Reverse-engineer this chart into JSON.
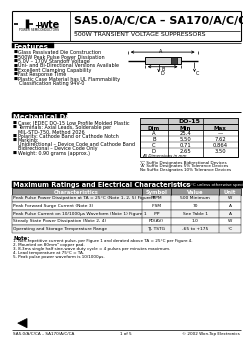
{
  "title_main": "SA5.0/A/C/CA – SA170/A/C/CA",
  "title_sub": "500W TRANSIENT VOLTAGE SUPPRESSORS",
  "features_title": "Features",
  "features": [
    "Glass Passivated Die Construction",
    "500W Peak Pulse Power Dissipation",
    "5.0V – 170V Standoff Voltage",
    "Uni- and Bi-Directional Versions Available",
    "Excellent Clamping Capability",
    "Fast Response Time",
    "Plastic Case Material has UL Flammability",
    "   Classification Rating 94V-0"
  ],
  "mech_title": "Mechanical Data",
  "mech_items": [
    "Case: JEDEC DO-15 Low Profile Molded Plastic",
    "Terminals: Axial Leads, Solderable per",
    "   MIL-STD-750, Method 2026",
    "Polarity: Cathode Band or Cathode Notch",
    "Marking:",
    "   Unidirectional – Device Code and Cathode Band",
    "   Bidirectional – Device Code Only",
    "Weight: 0.90 grams (approx.)"
  ],
  "mech_bullets": [
    true,
    true,
    false,
    true,
    true,
    false,
    false,
    true
  ],
  "do15_title": "DO-15",
  "do15_headers": [
    "Dim",
    "Min",
    "Max"
  ],
  "do15_rows": [
    [
      "A",
      "25.4",
      "—"
    ],
    [
      "B",
      "5.50",
      "7.62"
    ],
    [
      "C",
      "0.71",
      "0.864"
    ],
    [
      "D",
      "2.65",
      "3.50"
    ]
  ],
  "do15_note": "All Dimensions in mm",
  "suffix_notes": [
    "'C' Suffix Designates Bidirectional Devices",
    "'A' Suffix Designates 5% Tolerance Devices",
    "No Suffix Designates 10% Tolerance Devices"
  ],
  "ratings_title": "Maximum Ratings and Electrical Characteristics",
  "ratings_note": "@TA=25°C unless otherwise specified",
  "table_headers": [
    "Characteristics",
    "Symbol",
    "Value",
    "Unit"
  ],
  "table_rows": [
    [
      "Peak Pulse Power Dissipation at TA = 25°C (Note 1, 2, 5) Figure 3",
      "PPPM",
      "500 Minimum",
      "W"
    ],
    [
      "Peak Forward Surge Current (Note 3)",
      "IFSM",
      "70",
      "A"
    ],
    [
      "Peak Pulse Current on 10/1000μs Waveform (Note 1) Figure 1",
      "IPP",
      "See Table 1",
      "A"
    ],
    [
      "Steady State Power Dissipation (Note 2, 4)",
      "PD(AV)",
      "1.0",
      "W"
    ],
    [
      "Operating and Storage Temperature Range",
      "TJ, TSTG",
      "-65 to +175",
      "°C"
    ]
  ],
  "notes_title": "Note:",
  "notes": [
    "1. Non-repetitive current pulse, per Figure 1 and derated above TA = 25°C per Figure 4.",
    "2. Mounted on 80mm² copper pad.",
    "3. 8.3ms single half sine-wave duty cycle = 4 pulses per minutes maximum.",
    "4. Lead temperature at 75°C = TA.",
    "5. Peak pulse power waveform is 10/1000μs."
  ],
  "footer_left": "SA5.0/A/C/CA – SA170/A/C/CA",
  "footer_mid": "1 of 5",
  "footer_right": "© 2002 Won-Top Electronics"
}
